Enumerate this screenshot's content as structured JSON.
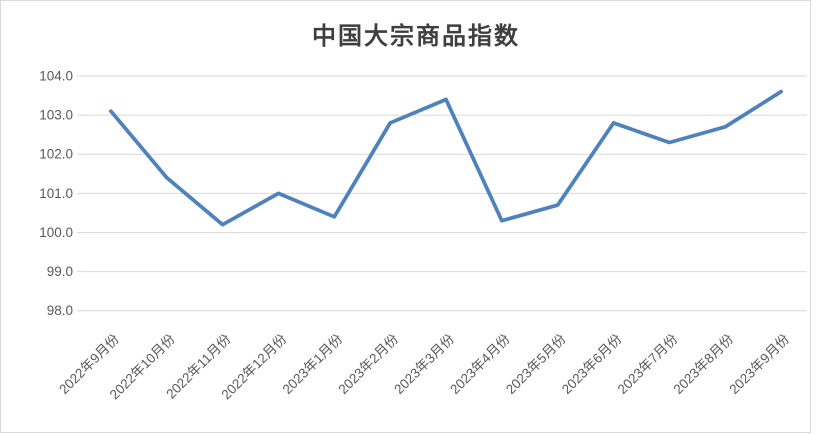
{
  "window": {
    "background": "#ffffff",
    "frame_border_color": "#d9d9d9"
  },
  "chart_data": {
    "type": "line",
    "title": "中国大宗商品指数",
    "categories": [
      "2022年9月份",
      "2022年10月份",
      "2022年11月份",
      "2022年12月份",
      "2023年1月份",
      "2023年2月份",
      "2023年3月份",
      "2023年4月份",
      "2023年5月份",
      "2023年6月份",
      "2023年7月份",
      "2023年8月份",
      "2023年9月份"
    ],
    "values": [
      103.1,
      101.4,
      100.2,
      101.0,
      100.4,
      102.8,
      103.4,
      100.3,
      100.7,
      102.8,
      102.3,
      102.7,
      103.6
    ],
    "xlabel": "",
    "ylabel": "",
    "ylim": [
      98.0,
      104.0
    ],
    "ytick_step": 1.0,
    "ytick_labels": [
      "98.0",
      "99.0",
      "100.0",
      "101.0",
      "102.0",
      "103.0",
      "104.0"
    ],
    "grid": true,
    "legend_position": "none",
    "line_color": "#4f81bd",
    "grid_color": "#d9d9d9",
    "tick_color": "#d9d9d9",
    "axis_label_color": "#595959",
    "title_color": "#3f3f3f"
  }
}
